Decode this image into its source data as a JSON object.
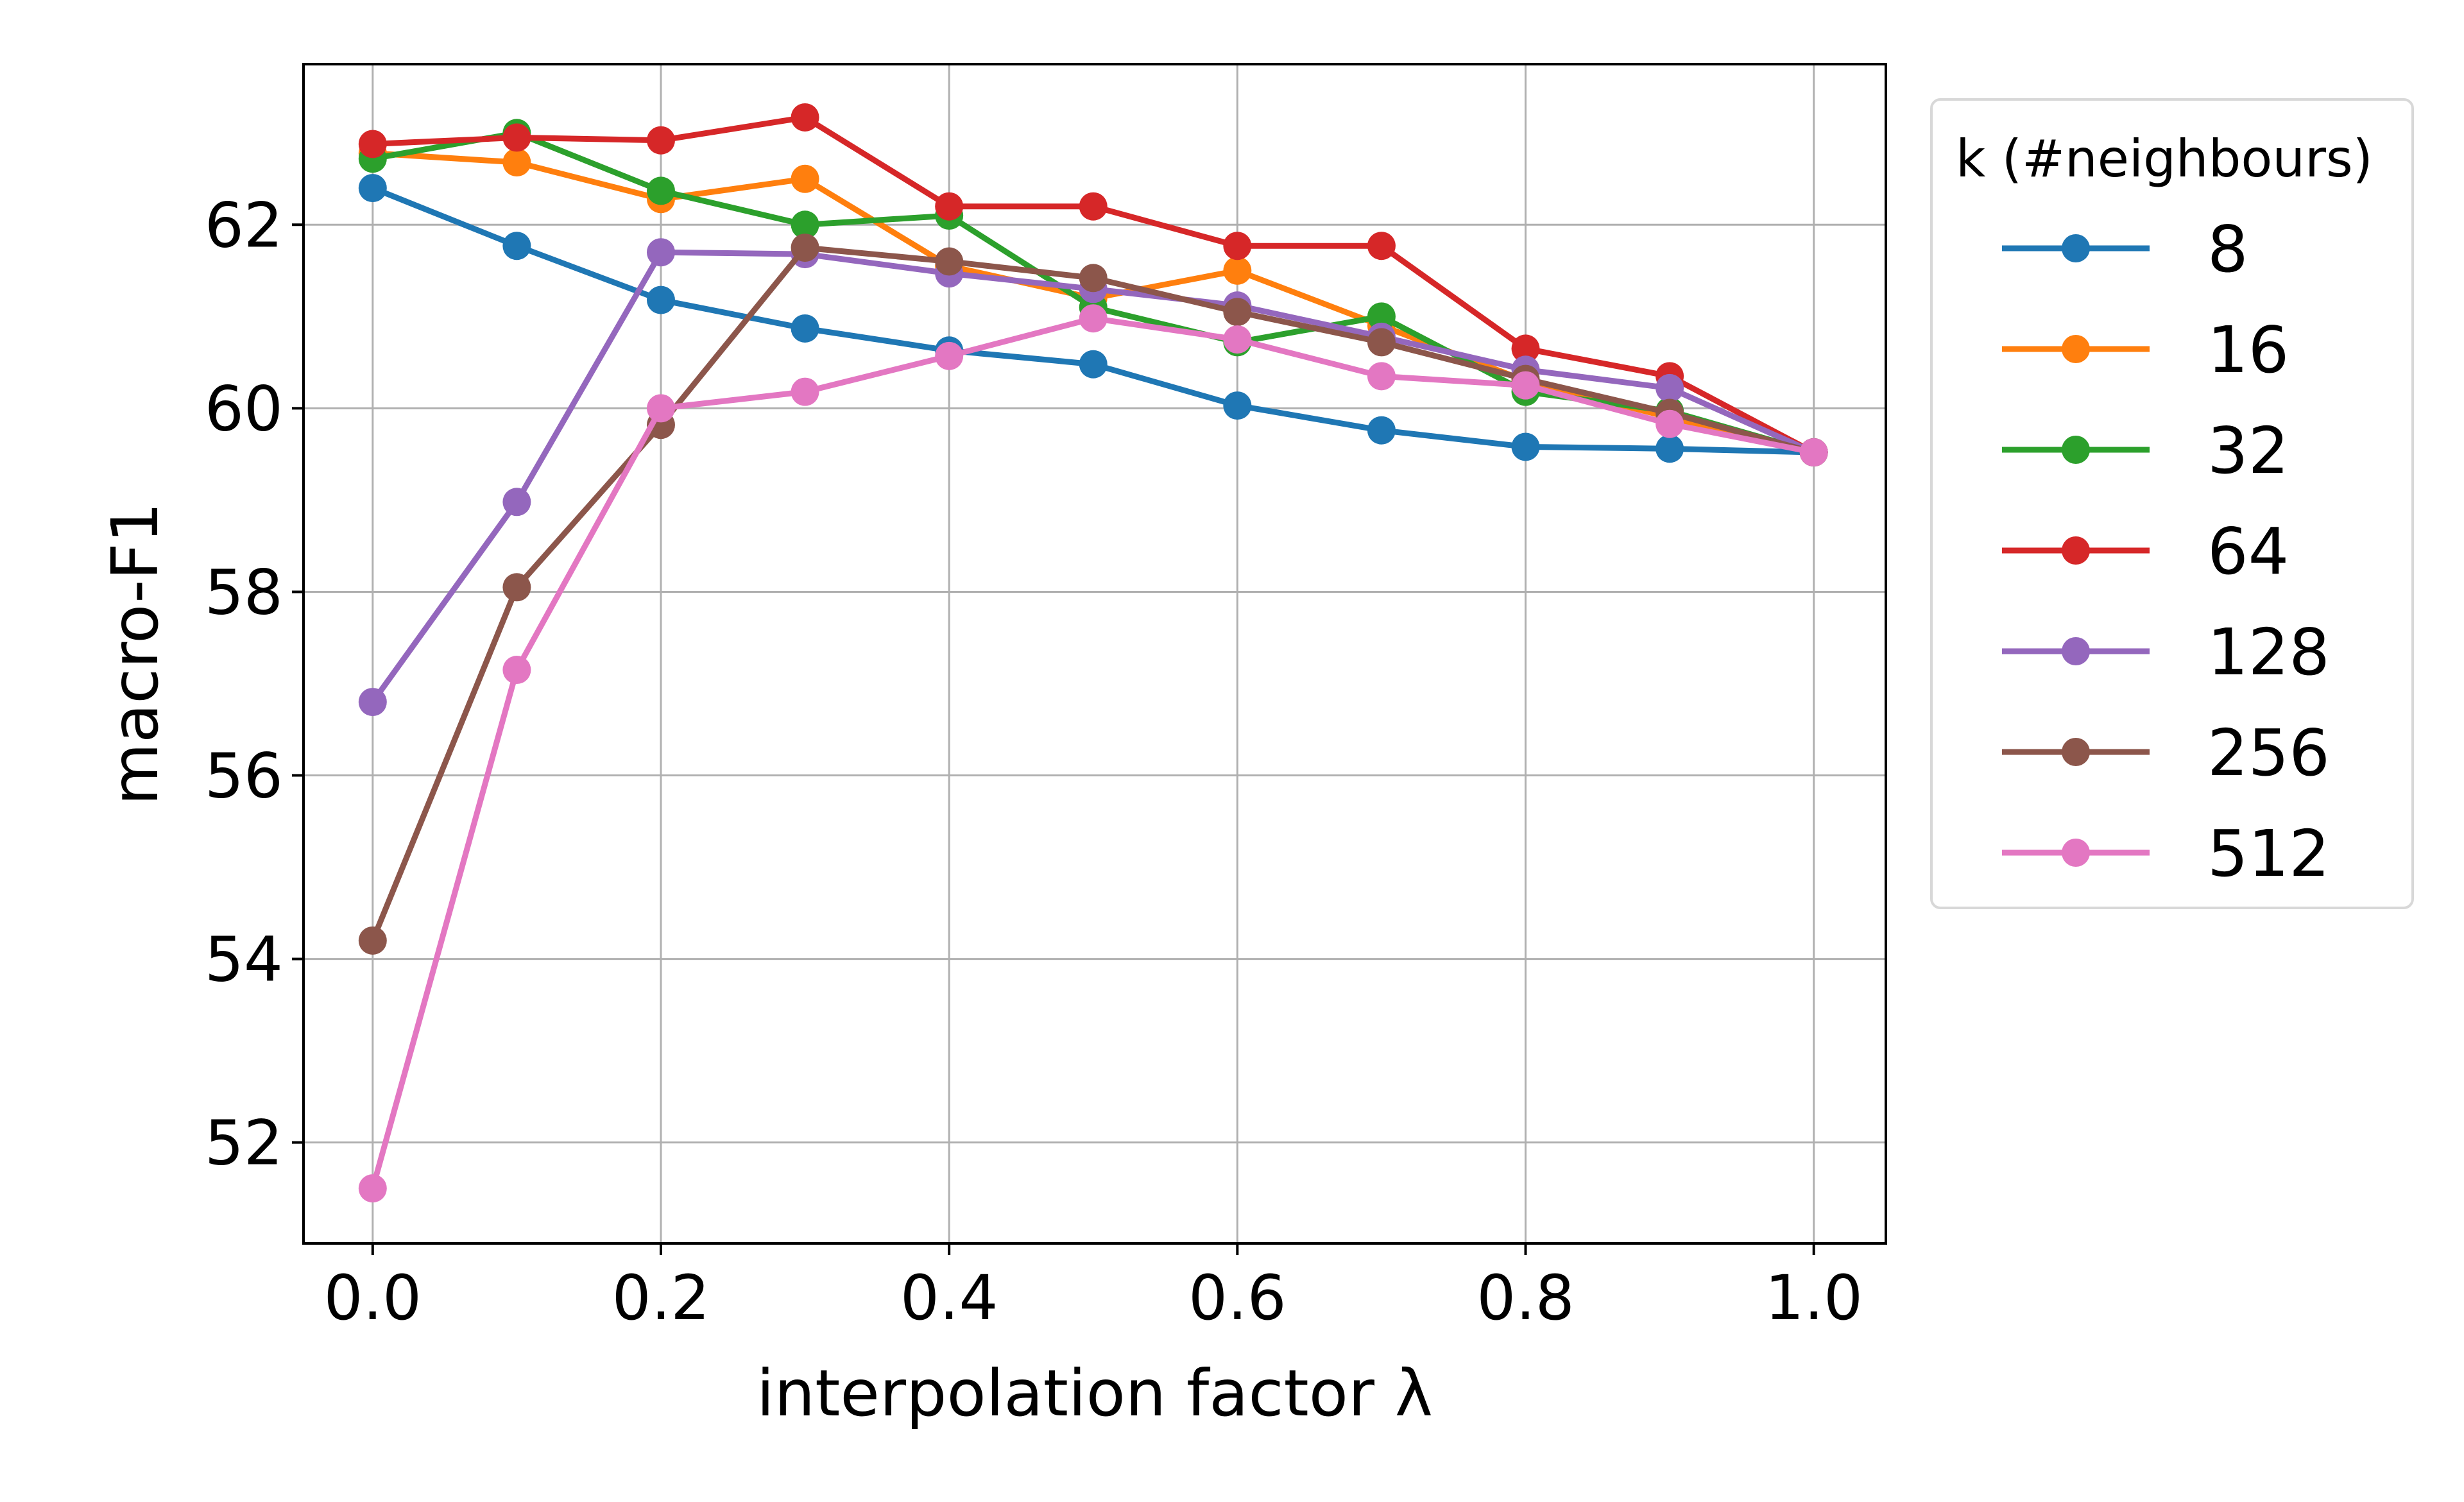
{
  "chart_data": {
    "type": "line",
    "title": "",
    "xlabel": "interpolation factor λ",
    "ylabel": "macro-F1",
    "x": [
      0.0,
      0.1,
      0.2,
      0.3,
      0.4,
      0.5,
      0.6,
      0.7,
      0.8,
      0.9,
      1.0
    ],
    "xlim": [
      -0.048,
      1.05
    ],
    "ylim": [
      50.9,
      63.75
    ],
    "xticks": [
      0.0,
      0.2,
      0.4,
      0.6,
      0.8,
      1.0
    ],
    "xtick_labels": [
      "0.0",
      "0.2",
      "0.4",
      "0.6",
      "0.8",
      "1.0"
    ],
    "yticks": [
      52,
      54,
      56,
      58,
      60,
      62
    ],
    "ytick_labels": [
      "52",
      "54",
      "56",
      "58",
      "60",
      "62"
    ],
    "grid": true,
    "legend": {
      "title": "k (#neighbours)",
      "placement": "outside-right-top"
    },
    "series": [
      {
        "name": "8",
        "color": "#1f77b4",
        "values": [
          62.4,
          61.77,
          61.18,
          60.87,
          60.63,
          60.48,
          60.03,
          59.76,
          59.58,
          59.56,
          59.52
        ]
      },
      {
        "name": "16",
        "color": "#ff7f0e",
        "values": [
          62.78,
          62.68,
          62.28,
          62.5,
          61.55,
          61.2,
          61.5,
          60.9,
          60.3,
          59.9,
          59.52
        ]
      },
      {
        "name": "32",
        "color": "#2ca02c",
        "values": [
          62.72,
          63.0,
          62.37,
          62.0,
          62.1,
          61.1,
          60.72,
          61.0,
          60.18,
          59.97,
          59.52
        ]
      },
      {
        "name": "64",
        "color": "#d62728",
        "values": [
          62.88,
          62.95,
          62.92,
          63.17,
          62.2,
          62.2,
          61.77,
          61.77,
          60.65,
          60.35,
          59.52
        ]
      },
      {
        "name": "128",
        "color": "#9467bd",
        "values": [
          56.8,
          58.98,
          61.7,
          61.68,
          61.47,
          61.3,
          61.12,
          60.78,
          60.42,
          60.22,
          59.52
        ]
      },
      {
        "name": "256",
        "color": "#8c564b",
        "values": [
          54.2,
          58.05,
          59.82,
          61.75,
          61.6,
          61.42,
          61.05,
          60.72,
          60.32,
          59.95,
          59.52
        ]
      },
      {
        "name": "512",
        "color": "#e377c2",
        "values": [
          51.5,
          57.15,
          60.0,
          60.18,
          60.57,
          60.98,
          60.75,
          60.35,
          60.25,
          59.83,
          59.52
        ]
      }
    ]
  }
}
